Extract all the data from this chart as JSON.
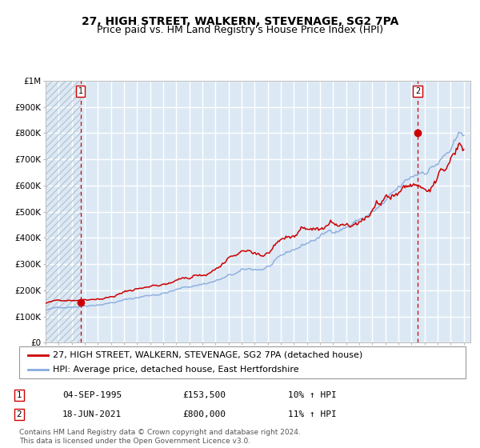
{
  "title": "27, HIGH STREET, WALKERN, STEVENAGE, SG2 7PA",
  "subtitle": "Price paid vs. HM Land Registry's House Price Index (HPI)",
  "x_start_year": 1993,
  "x_end_year": 2025,
  "y_min": 0,
  "y_max": 1000000,
  "y_ticks": [
    0,
    100000,
    200000,
    300000,
    400000,
    500000,
    600000,
    700000,
    800000,
    900000,
    1000000
  ],
  "y_tick_labels": [
    "£0",
    "£100K",
    "£200K",
    "£300K",
    "£400K",
    "£500K",
    "£600K",
    "£700K",
    "£800K",
    "£900K",
    "£1M"
  ],
  "transaction1_date": 1995.67,
  "transaction1_price": 153500,
  "transaction1_label": "1",
  "transaction1_display": "04-SEP-1995",
  "transaction1_amount": "£153,500",
  "transaction1_hpi": "10% ↑ HPI",
  "transaction2_date": 2021.46,
  "transaction2_price": 800000,
  "transaction2_label": "2",
  "transaction2_display": "18-JUN-2021",
  "transaction2_amount": "£800,000",
  "transaction2_hpi": "11% ↑ HPI",
  "line1_color": "#cc0000",
  "line2_color": "#88aadd",
  "marker_color": "#cc0000",
  "dashed_line_color": "#cc0000",
  "background_color": "#dce9f5",
  "hatch_color": "#b8c8d8",
  "grid_color": "#ffffff",
  "legend_label1": "27, HIGH STREET, WALKERN, STEVENAGE, SG2 7PA (detached house)",
  "legend_label2": "HPI: Average price, detached house, East Hertfordshire",
  "footnote": "Contains HM Land Registry data © Crown copyright and database right 2024.\nThis data is licensed under the Open Government Licence v3.0.",
  "title_fontsize": 10,
  "subtitle_fontsize": 9,
  "tick_fontsize": 7.5,
  "legend_fontsize": 8,
  "footnote_fontsize": 6.5
}
